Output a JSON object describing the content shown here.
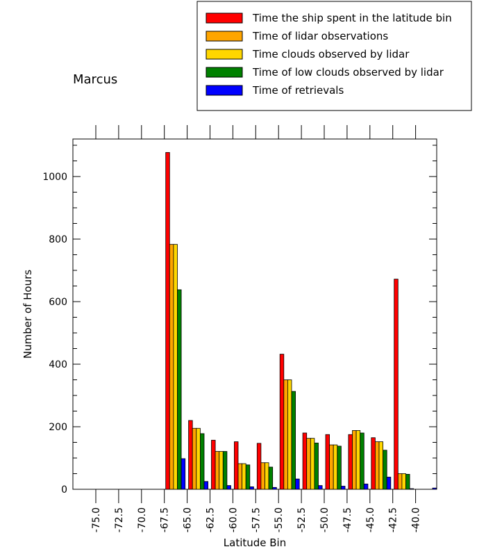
{
  "chart_data": {
    "type": "bar",
    "title": "Marcus",
    "xlabel": "Latitude Bin",
    "ylabel": "Number of Hours",
    "categories": [
      "-75.0",
      "-72.5",
      "-70.0",
      "-67.5",
      "-65.0",
      "-62.5",
      "-60.0",
      "-57.5",
      "-55.0",
      "-52.5",
      "-50.0",
      "-47.5",
      "-45.0",
      "-42.5",
      "-40.0"
    ],
    "ylim": [
      0,
      1120
    ],
    "yticks": [
      0,
      200,
      400,
      600,
      800,
      1000
    ],
    "ytick_labels": [
      "0",
      "200",
      "400",
      "600",
      "800",
      "1000"
    ],
    "legend_position": "top-right",
    "series": [
      {
        "name": "Time the ship spent in the latitude bin",
        "color": "#ff0000",
        "values": [
          0,
          0,
          0,
          1077,
          220,
          157,
          152,
          147,
          432,
          180,
          175,
          175,
          165,
          672,
          0
        ]
      },
      {
        "name": "Time of lidar observations",
        "color": "#ffa500",
        "values": [
          0,
          0,
          0,
          783,
          195,
          121,
          82,
          85,
          350,
          163,
          142,
          188,
          152,
          50,
          0
        ]
      },
      {
        "name": "Time clouds observed by lidar",
        "color": "#ffd700",
        "values": [
          0,
          0,
          0,
          783,
          195,
          121,
          82,
          85,
          350,
          163,
          142,
          188,
          152,
          50,
          0
        ]
      },
      {
        "name": "Time of low clouds observed by lidar",
        "color": "#008000",
        "values": [
          0,
          0,
          0,
          638,
          178,
          121,
          78,
          71,
          313,
          148,
          138,
          180,
          125,
          48,
          0
        ]
      },
      {
        "name": "Time of retrievals",
        "color": "#0000ff",
        "values": [
          0,
          0,
          0,
          98,
          25,
          12,
          8,
          6,
          33,
          12,
          10,
          17,
          39,
          2,
          4
        ]
      }
    ]
  }
}
